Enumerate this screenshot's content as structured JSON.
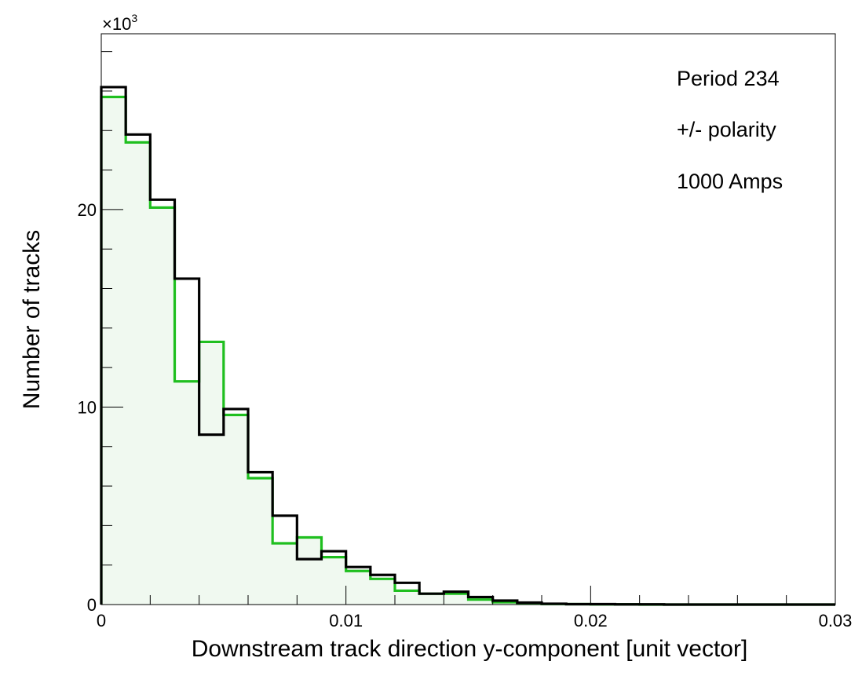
{
  "chart_data": {
    "type": "histogram",
    "xlabel": "Downstream track direction y-component [unit vector]",
    "ylabel": "Number of tracks",
    "xlim": [
      0,
      0.03
    ],
    "ylim": [
      0,
      28.9
    ],
    "y_multiplier": "×10",
    "y_multiplier_exp": "3",
    "grid": false,
    "x_ticks": [
      {
        "value": 0,
        "label": "0"
      },
      {
        "value": 0.01,
        "label": "0.01"
      },
      {
        "value": 0.02,
        "label": "0.02"
      },
      {
        "value": 0.03,
        "label": "0.03"
      }
    ],
    "y_ticks": [
      {
        "value": 0,
        "label": "0"
      },
      {
        "value": 10,
        "label": "10"
      },
      {
        "value": 20,
        "label": "20"
      }
    ],
    "bin_width": 0.001,
    "bin_edges_start": 0,
    "series": [
      {
        "color": "#1fbf1f",
        "fill": "#f0f9f0",
        "values": [
          25.7,
          23.4,
          20.1,
          11.3,
          13.3,
          9.6,
          6.4,
          3.1,
          3.4,
          2.4,
          1.7,
          1.3,
          0.7,
          0.55,
          0.55,
          0.25,
          0.12,
          0.06,
          0.03,
          0.02,
          0.01,
          0.01,
          0.0,
          0.0,
          0.0,
          0.0,
          0.0,
          0.0,
          0.0,
          0.0
        ]
      },
      {
        "color": "#000000",
        "fill": "none",
        "values": [
          26.2,
          23.8,
          20.5,
          16.5,
          8.6,
          9.9,
          6.7,
          4.5,
          2.3,
          2.7,
          1.9,
          1.5,
          1.1,
          0.55,
          0.65,
          0.38,
          0.2,
          0.1,
          0.04,
          0.02,
          0.02,
          0.01,
          0.01,
          0.0,
          0.0,
          0.0,
          0.0,
          0.0,
          0.0,
          0.0
        ]
      }
    ],
    "annotations": [
      "Period 234",
      "+/- polarity",
      "1000 Amps"
    ]
  }
}
